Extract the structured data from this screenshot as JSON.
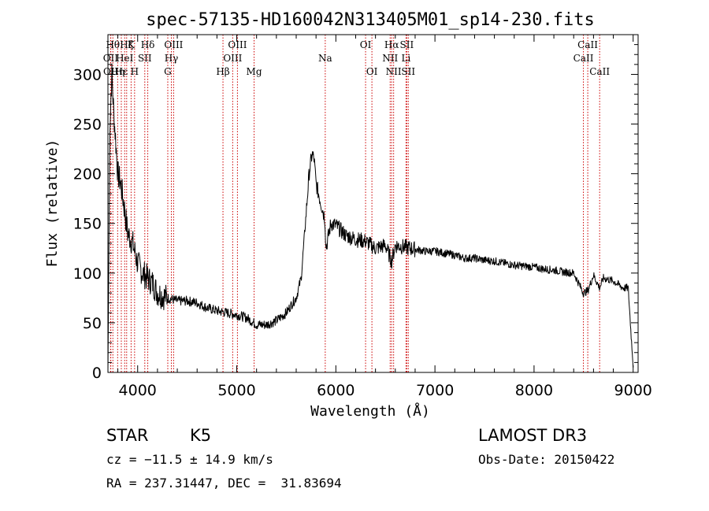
{
  "chart_data": {
    "type": "line",
    "title": "spec-57135-HD160042N313405M01_sp14-230.fits",
    "xlabel": "Wavelength (Å)",
    "ylabel": "Flux (relative)",
    "xlim": [
      3700,
      9050
    ],
    "ylim": [
      0,
      340
    ],
    "xticks": [
      4000,
      5000,
      6000,
      7000,
      8000,
      9000
    ],
    "yticks": [
      0,
      50,
      100,
      150,
      200,
      250,
      300
    ],
    "grid": false,
    "line_color": "#000000",
    "marker_color": "#cc0000",
    "series": [
      {
        "x": [
          3700,
          3720,
          3740,
          3760,
          3780,
          3800,
          3830,
          3860,
          3900,
          3950,
          4000,
          4050,
          4100,
          4150,
          4200,
          4300,
          4400,
          4500,
          4600,
          4700,
          4800,
          4900,
          5000,
          5100,
          5170,
          5200,
          5300,
          5400,
          5500,
          5550,
          5600,
          5650,
          5700,
          5730,
          5760,
          5780,
          5800,
          5850,
          5890,
          5900,
          5950,
          6000,
          6100,
          6200,
          6300,
          6400,
          6500,
          6563,
          6600,
          6700,
          6800,
          6900,
          7000,
          7100,
          7200,
          7300,
          7400,
          7500,
          7600,
          7700,
          7800,
          7900,
          8000,
          8100,
          8200,
          8300,
          8400,
          8498,
          8542,
          8600,
          8662,
          8700,
          8800,
          8900,
          8950,
          9000
        ],
        "y": [
          0,
          250,
          300,
          260,
          230,
          200,
          190,
          170,
          140,
          130,
          110,
          100,
          95,
          90,
          80,
          75,
          72,
          72,
          70,
          65,
          62,
          60,
          58,
          55,
          50,
          48,
          48,
          52,
          60,
          68,
          75,
          95,
          160,
          200,
          220,
          215,
          190,
          170,
          155,
          125,
          150,
          148,
          138,
          134,
          132,
          125,
          128,
          112,
          128,
          126,
          124,
          122,
          122,
          120,
          118,
          115,
          115,
          113,
          112,
          110,
          108,
          107,
          106,
          104,
          103,
          101,
          100,
          80,
          82,
          98,
          85,
          95,
          92,
          85,
          85,
          5
        ]
      }
    ],
    "lines": [
      {
        "wl": 3727,
        "label": "OII",
        "row": 2
      },
      {
        "wl": 3729,
        "label": "OII",
        "row": 3
      },
      {
        "wl": 3750,
        "label": "Hθ",
        "row": 1
      },
      {
        "wl": 3798,
        "label": "Hη",
        "row": 3
      },
      {
        "wl": 3835,
        "label": "Hε",
        "row": 3
      },
      {
        "wl": 3869,
        "label": "HeI",
        "row": 2
      },
      {
        "wl": 3889,
        "label": "Hζ",
        "row": 1
      },
      {
        "wl": 3934,
        "label": "K",
        "row": 1
      },
      {
        "wl": 3969,
        "label": "H",
        "row": 3
      },
      {
        "wl": 4072,
        "label": "SII",
        "row": 2
      },
      {
        "wl": 4102,
        "label": "Hδ",
        "row": 1
      },
      {
        "wl": 4304,
        "label": "G",
        "row": 3
      },
      {
        "wl": 4340,
        "label": "Hγ",
        "row": 2
      },
      {
        "wl": 4363,
        "label": "OIII",
        "row": 1
      },
      {
        "wl": 4861,
        "label": "Hβ",
        "row": 3
      },
      {
        "wl": 4959,
        "label": "OIII",
        "row": 2
      },
      {
        "wl": 5007,
        "label": "OIII",
        "row": 1
      },
      {
        "wl": 5175,
        "label": "Mg",
        "row": 3
      },
      {
        "wl": 5893,
        "label": "Na",
        "row": 2
      },
      {
        "wl": 6300,
        "label": "OI",
        "row": 1
      },
      {
        "wl": 6364,
        "label": "OI",
        "row": 3
      },
      {
        "wl": 6548,
        "label": "NII",
        "row": 2
      },
      {
        "wl": 6563,
        "label": "Hα",
        "row": 1
      },
      {
        "wl": 6583,
        "label": "NII",
        "row": 3
      },
      {
        "wl": 6708,
        "label": "Li",
        "row": 2
      },
      {
        "wl": 6716,
        "label": "SII",
        "row": 1
      },
      {
        "wl": 6731,
        "label": "SII",
        "row": 3
      },
      {
        "wl": 8498,
        "label": "CaII",
        "row": 2
      },
      {
        "wl": 8542,
        "label": "CaII",
        "row": 1
      },
      {
        "wl": 8662,
        "label": "CaII",
        "row": 3
      }
    ]
  },
  "info": {
    "class": "STAR",
    "subclass": "K5",
    "survey": "LAMOST DR3",
    "cz": "cz = −11.5 ± 14.9 km/s",
    "obs_date": "Obs-Date: 20150422",
    "coords": "RA = 237.31447, DEC =  31.83694"
  }
}
